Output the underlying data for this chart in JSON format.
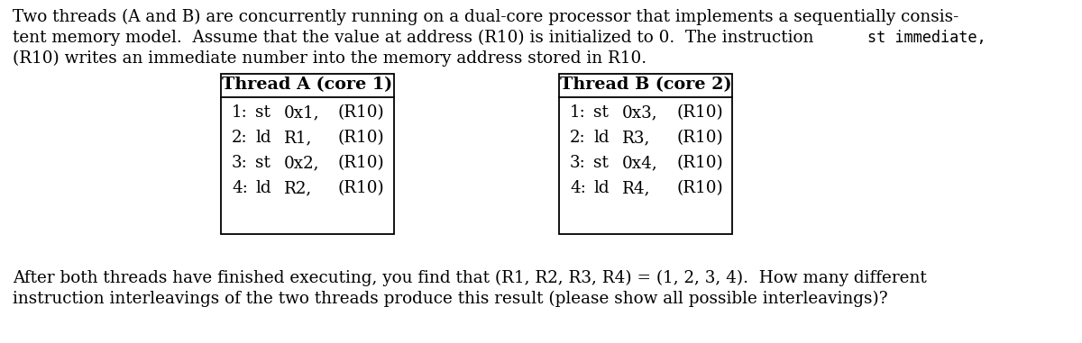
{
  "background_color": "#ffffff",
  "intro_line1": "Two threads (A and B) are concurrently running on a dual-core processor that implements a sequentially consis-",
  "intro_line2_pre": "tent memory model.  Assume that the value at address (R10) is initialized to 0.  The instruction ",
  "intro_line2_mono": "st immediate,",
  "intro_line3": "(R10) writes an immediate number into the memory address stored in R10.",
  "thread_a_title": "Thread A (core 1)",
  "thread_b_title": "Thread B (core 2)",
  "thread_a_rows": [
    [
      "1:",
      "st",
      "0x1,",
      "(R10)"
    ],
    [
      "2:",
      "ld",
      "R1,",
      "(R10)"
    ],
    [
      "3:",
      "st",
      "0x2,",
      "(R10)"
    ],
    [
      "4:",
      "ld",
      "R2,",
      "(R10)"
    ]
  ],
  "thread_b_rows": [
    [
      "1:",
      "st",
      "0x3,",
      "(R10)"
    ],
    [
      "2:",
      "ld",
      "R3,",
      "(R10)"
    ],
    [
      "3:",
      "st",
      "0x4,",
      "(R10)"
    ],
    [
      "4:",
      "ld",
      "R4,",
      "(R10)"
    ]
  ],
  "footer_line1": "After both threads have finished executing, you find that (R1, R2, R3, R4) = (1, 2, 3, 4).  How many different",
  "footer_line2": "instruction interleavings of the two threads produce this result (please show all possible interleavings)?",
  "body_fontsize": 13.2,
  "mono_fontsize": 12.2,
  "table_fontsize": 13.2,
  "title_fontsize": 13.8
}
